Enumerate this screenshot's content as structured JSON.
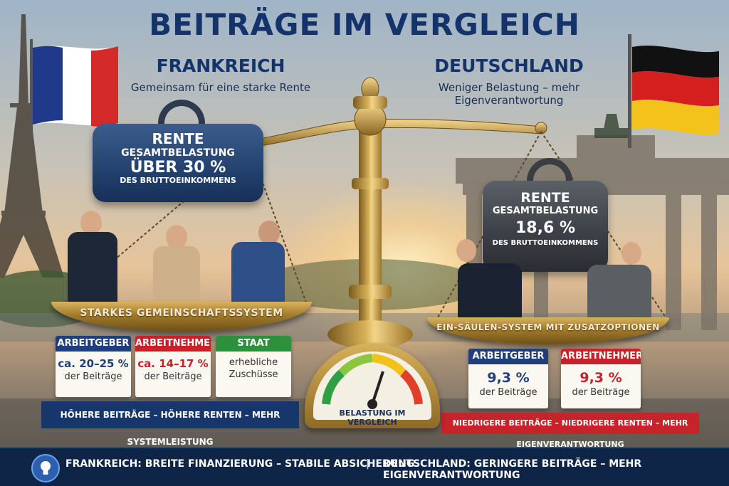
{
  "title": "BEITRÄGE IM VERGLEICH",
  "colors": {
    "navy": "#13336a",
    "employer_blue": "#1f3f7a",
    "employee_red": "#c9202a",
    "state_green": "#2e8f3c",
    "brass": "#c9a24b"
  },
  "france": {
    "name": "FRANKREICH",
    "tagline": "Gemeinsam für eine starke Rente",
    "weight": {
      "line1": "RENTE",
      "line2": "GESAMTBELASTUNG",
      "line3": "ÜBER 30 %",
      "line4": "DES BRUTTOEINKOMMENS"
    },
    "pan_label": "STARKES GEMEINSCHAFTSSYSTEM",
    "cards": [
      {
        "head": "ARBEITGEBER",
        "value": "ca. 20–25 %",
        "sub": "der Beiträge"
      },
      {
        "head": "ARBEITNEHMER",
        "value": "ca. 14–17 %",
        "sub": "der Beiträge"
      },
      {
        "head": "STAAT",
        "value": "erhebliche",
        "sub": "Zuschüsse"
      }
    ],
    "ribbon": "HÖHERE BEITRÄGE – HÖHERE RENTEN – MEHR SYSTEMLEISTUNG"
  },
  "germany": {
    "name": "DEUTSCHLAND",
    "tagline": "Weniger Belastung – mehr Eigenverantwortung",
    "weight": {
      "line1": "RENTE",
      "line2": "GESAMTBELASTUNG",
      "line3": "18,6 %",
      "line4": "DES BRUTTOEINKOMMENS"
    },
    "pan_label": "EIN-SÄULEN-SYSTEM MIT ZUSATZOPTIONEN",
    "cards": [
      {
        "head": "ARBEITGEBER",
        "value": "9,3 %",
        "sub": "der Beiträge"
      },
      {
        "head": "ARBEITNEHMER",
        "value": "9,3 %",
        "sub": "der Beiträge"
      }
    ],
    "ribbon": "NIEDRIGERE BEITRÄGE – NIEDRIGERE RENTEN – MEHR EIGENVERANTWORTUNG"
  },
  "gauge": {
    "label": "BELASTUNG IM VERGLEICH"
  },
  "bottom": {
    "left": "FRANKREICH: BREITE FINANZIERUNG – STABILE ABSICHERUNG",
    "separator": "|",
    "right": "DEUTSCHLAND: GERINGERE BEITRÄGE – MEHR EIGENVERANTWORTUNG",
    "icon": "lightbulb-icon"
  }
}
